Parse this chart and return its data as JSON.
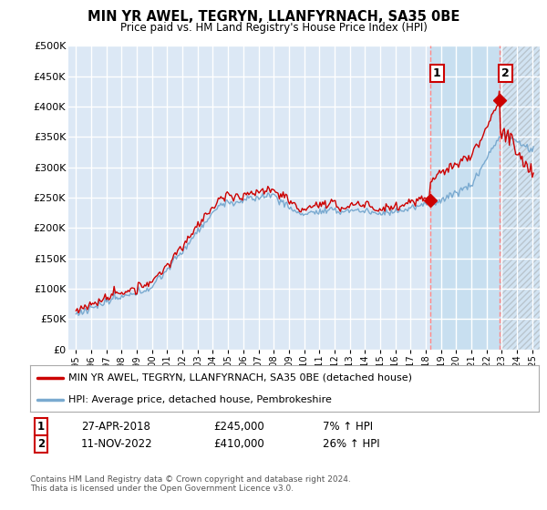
{
  "title": "MIN YR AWEL, TEGRYN, LLANFYRNACH, SA35 0BE",
  "subtitle": "Price paid vs. HM Land Registry's House Price Index (HPI)",
  "ylabel_ticks": [
    "£0",
    "£50K",
    "£100K",
    "£150K",
    "£200K",
    "£250K",
    "£300K",
    "£350K",
    "£400K",
    "£450K",
    "£500K"
  ],
  "ylim": [
    0,
    500000
  ],
  "yticks": [
    0,
    50000,
    100000,
    150000,
    200000,
    250000,
    300000,
    350000,
    400000,
    450000,
    500000
  ],
  "sale1": {
    "date_num": 2018.32,
    "price": 245000,
    "label": "1",
    "date_str": "27-APR-2018",
    "pct": "7%"
  },
  "sale2": {
    "date_num": 2022.86,
    "price": 410000,
    "label": "2",
    "date_str": "11-NOV-2022",
    "pct": "26%"
  },
  "legend_property": "MIN YR AWEL, TEGRYN, LLANFYRNACH, SA35 0BE (detached house)",
  "legend_hpi": "HPI: Average price, detached house, Pembrokeshire",
  "footer": "Contains HM Land Registry data © Crown copyright and database right 2024.\nThis data is licensed under the Open Government Licence v3.0.",
  "line_color_property": "#cc0000",
  "line_color_hpi": "#7aaad0",
  "background_color": "#dce8f5",
  "grid_color": "#ffffff",
  "highlight_color": "#c8dff0",
  "xmin": 1994.5,
  "xmax": 2025.5,
  "xtick_years": [
    1995,
    1996,
    1997,
    1998,
    1999,
    2000,
    2001,
    2002,
    2003,
    2004,
    2005,
    2006,
    2007,
    2008,
    2009,
    2010,
    2011,
    2012,
    2013,
    2014,
    2015,
    2016,
    2017,
    2018,
    2019,
    2020,
    2021,
    2022,
    2023,
    2024,
    2025
  ]
}
